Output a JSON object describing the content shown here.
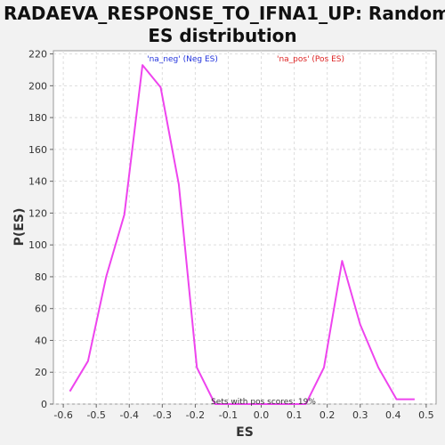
{
  "chart_data": {
    "type": "line",
    "title": "RADAEVA_RESPONSE_TO_IFNA1_UP: Random ES distribution",
    "title_lines": [
      "RADAEVA_RESPONSE_TO_IFNA1_UP: Random",
      "ES distribution"
    ],
    "xlabel": "ES",
    "ylabel": "P(ES)",
    "xlim": [
      -0.63,
      0.53
    ],
    "ylim": [
      0,
      222
    ],
    "xticks": [
      -0.6,
      -0.5,
      -0.4,
      -0.3,
      -0.2,
      -0.1,
      0.0,
      0.1,
      0.2,
      0.3,
      0.4,
      0.5
    ],
    "xtick_labels": [
      "-0.6",
      "-0.5",
      "-0.4",
      "-0.3",
      "-0.2",
      "-0.1",
      "0.0",
      "0.1",
      "0.2",
      "0.3",
      "0.4",
      "0.5"
    ],
    "yticks": [
      0,
      20,
      40,
      60,
      80,
      100,
      120,
      140,
      160,
      180,
      200,
      220
    ],
    "ytick_labels": [
      "0",
      "20",
      "40",
      "60",
      "80",
      "100",
      "120",
      "140",
      "160",
      "180",
      "200",
      "220"
    ],
    "grid": true,
    "series": [
      {
        "color": "#ee44ee",
        "x": [
          -0.58,
          -0.525,
          -0.47,
          -0.415,
          -0.36,
          -0.305,
          -0.25,
          -0.195,
          -0.14,
          -0.085,
          -0.03,
          0.025,
          0.08,
          0.135,
          0.19,
          0.245,
          0.3,
          0.355,
          0.41,
          0.465
        ],
        "y": [
          8,
          27,
          80,
          119,
          213,
          199,
          138,
          23,
          0,
          0,
          0,
          0,
          0,
          0,
          23,
          90,
          50,
          23,
          3,
          3
        ]
      }
    ],
    "annotations": {
      "neg": {
        "text": "'na_neg' (Neg ES)",
        "color": "#2233dd"
      },
      "pos": {
        "text": "'na_pos' (Pos ES)",
        "color": "#dd2222"
      },
      "sets": {
        "text": "Sets with pos scores: 19%",
        "color": "#333333"
      }
    }
  }
}
